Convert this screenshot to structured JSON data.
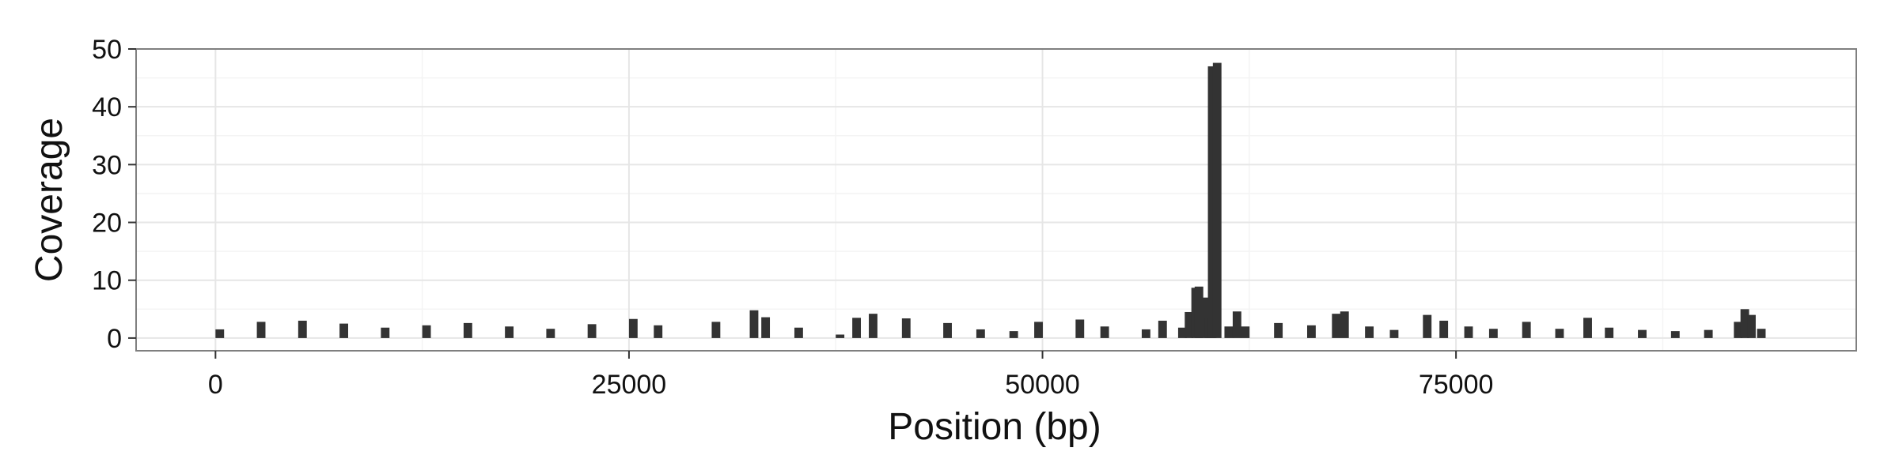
{
  "chart_data": {
    "type": "bar",
    "title": "",
    "xlabel": "Position (bp)",
    "ylabel": "Coverage",
    "xlim": [
      -4800,
      99200
    ],
    "ylim": [
      -2.2,
      50
    ],
    "xticks": [
      0,
      25000,
      50000,
      75000
    ],
    "xtick_labels": [
      "0",
      "25000",
      "50000",
      "75000"
    ],
    "yticks": [
      0,
      10,
      20,
      30,
      40,
      50
    ],
    "ytick_labels": [
      "0",
      "10",
      "20",
      "30",
      "40",
      "50"
    ],
    "grid": true,
    "legend": "none",
    "bar_color": "#333333",
    "bin_width": 200,
    "series": [
      {
        "x": [
          0,
          2500,
          5000,
          7500,
          10000,
          12500,
          15000,
          17500,
          20000,
          22500,
          25000,
          26500,
          30000,
          32300,
          33000,
          35000,
          37500,
          38500,
          39500,
          41500,
          44000,
          46000,
          48000,
          49500,
          52000,
          53500,
          56000,
          57000,
          58200,
          58600,
          59000,
          59200,
          59500,
          59800,
          60000,
          60300,
          61000,
          61500,
          62000,
          64000,
          66000,
          67500,
          68000,
          69500,
          71000,
          73000,
          74000,
          75500,
          77000,
          79000,
          81000,
          82700,
          84000,
          86000,
          88000,
          90000,
          91800,
          92200,
          92600,
          93200
        ],
        "y": [
          1.5,
          2.8,
          3.0,
          2.5,
          1.8,
          2.2,
          2.6,
          2.0,
          1.6,
          2.4,
          3.3,
          2.2,
          2.8,
          4.8,
          3.6,
          1.8,
          0.6,
          3.5,
          4.2,
          3.4,
          2.6,
          1.5,
          1.2,
          2.8,
          3.2,
          2.0,
          1.5,
          3.0,
          1.8,
          4.5,
          8.7,
          8.9,
          7.0,
          3.5,
          47.0,
          47.6,
          2.0,
          4.6,
          2.0,
          2.6,
          2.2,
          4.2,
          4.6,
          2.0,
          1.4,
          4.0,
          3.0,
          2.0,
          1.6,
          2.8,
          1.6,
          3.5,
          1.8,
          1.4,
          1.2,
          1.4,
          2.8,
          5.0,
          4.0,
          1.6
        ]
      }
    ]
  }
}
